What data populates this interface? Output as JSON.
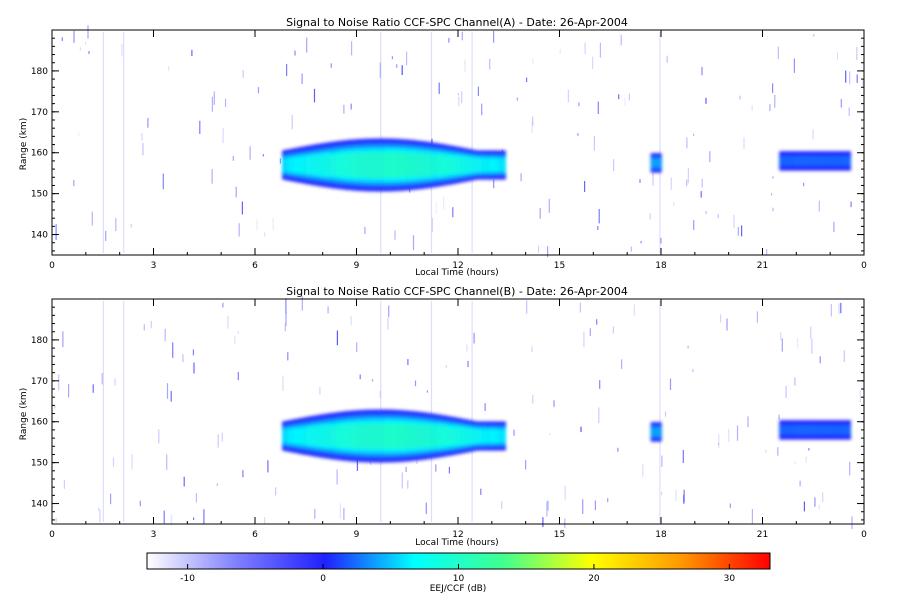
{
  "chart_data": [
    {
      "type": "heatmap",
      "title": "Signal to Noise Ratio CCF-SPC Channel(A) - Date: 26-Apr-2004",
      "xlabel": "Local Time (hours)",
      "ylabel": "Range (km)",
      "x_ticks": [
        "0",
        "3",
        "6",
        "9",
        "12",
        "15",
        "18",
        "21",
        "0"
      ],
      "y_ticks": [
        "140",
        "150",
        "160",
        "170",
        "180"
      ],
      "xlim": [
        0,
        24
      ],
      "ylim": [
        135,
        190
      ],
      "echo_regions": [
        {
          "t_start": 6.8,
          "t_end": 13.4,
          "range_center": 157,
          "range_halfwidth_max": 6.5,
          "peak_snr_db": 12
        },
        {
          "t_start": 17.7,
          "t_end": 18.0,
          "range_center": 157.5,
          "range_halfwidth_max": 3,
          "peak_snr_db": 5
        },
        {
          "t_start": 21.5,
          "t_end": 23.6,
          "range_center": 158,
          "range_halfwidth_max": 3,
          "peak_snr_db": 3
        }
      ]
    },
    {
      "type": "heatmap",
      "title": "Signal to Noise Ratio CCF-SPC Channel(B) - Date: 26-Apr-2004",
      "xlabel": "Local Time (hours)",
      "ylabel": "Range (km)",
      "x_ticks": [
        "0",
        "3",
        "6",
        "9",
        "12",
        "15",
        "18",
        "21",
        "0"
      ],
      "y_ticks": [
        "140",
        "150",
        "160",
        "170",
        "180"
      ],
      "xlim": [
        0,
        24
      ],
      "ylim": [
        135,
        190
      ],
      "echo_regions": [
        {
          "t_start": 6.8,
          "t_end": 13.4,
          "range_center": 156.5,
          "range_halfwidth_max": 6.5,
          "peak_snr_db": 12
        },
        {
          "t_start": 17.7,
          "t_end": 18.0,
          "range_center": 157.5,
          "range_halfwidth_max": 3,
          "peak_snr_db": 5
        },
        {
          "t_start": 21.5,
          "t_end": 23.6,
          "range_center": 158,
          "range_halfwidth_max": 3,
          "peak_snr_db": 3
        }
      ]
    }
  ],
  "colorbar": {
    "label": "EEJ/CCF (dB)",
    "ticks": [
      "-10",
      "0",
      "10",
      "20",
      "30"
    ],
    "range": [
      -13,
      33
    ],
    "colors": [
      "#ffffff",
      "#8080ff",
      "#2020ff",
      "#00ffff",
      "#40ff90",
      "#ffff00",
      "#ff9900",
      "#ff0000"
    ]
  }
}
